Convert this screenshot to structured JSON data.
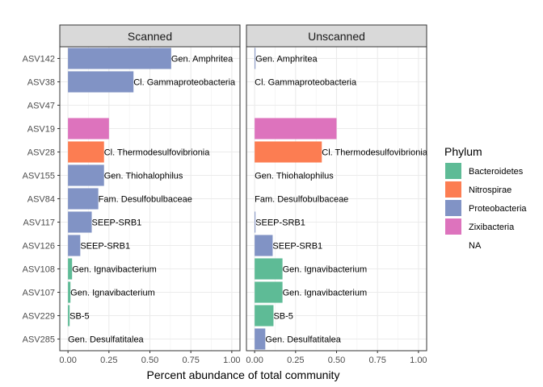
{
  "chart_data": {
    "type": "bar",
    "orientation": "horizontal",
    "xlabel": "Percent abundance of total community",
    "ylabel": "",
    "xlim": [
      -0.05,
      1.05
    ],
    "xticks": [
      "0.00",
      "0.25",
      "0.50",
      "0.75",
      "1.00"
    ],
    "xtick_values": [
      0,
      0.25,
      0.5,
      0.75,
      1.0
    ],
    "grid": true,
    "categories": [
      "ASV142",
      "ASV38",
      "ASV47",
      "ASV19",
      "ASV28",
      "ASV155",
      "ASV84",
      "ASV117",
      "ASV126",
      "ASV108",
      "ASV107",
      "ASV229",
      "ASV285"
    ],
    "panels": [
      {
        "name": "Scanned",
        "bars": [
          {
            "asv": "ASV142",
            "value": 0.63,
            "phylum": "Proteobacteria",
            "label": "Gen. Amphritea"
          },
          {
            "asv": "ASV38",
            "value": 0.4,
            "phylum": "Proteobacteria",
            "label": "Cl. Gammaproteobacteria"
          },
          {
            "asv": "ASV47",
            "value": 0,
            "phylum": "NA",
            "label": ""
          },
          {
            "asv": "ASV19",
            "value": 0.25,
            "phylum": "Zixibacteria",
            "label": ""
          },
          {
            "asv": "ASV28",
            "value": 0.22,
            "phylum": "Nitrospirae",
            "label": "Cl. Thermodesulfovibrionia"
          },
          {
            "asv": "ASV155",
            "value": 0.22,
            "phylum": "Proteobacteria",
            "label": "Gen. Thiohalophilus"
          },
          {
            "asv": "ASV84",
            "value": 0.185,
            "phylum": "Proteobacteria",
            "label": "Fam. Desulfobulbaceae"
          },
          {
            "asv": "ASV117",
            "value": 0.145,
            "phylum": "Proteobacteria",
            "label": "SEEP-SRB1"
          },
          {
            "asv": "ASV126",
            "value": 0.075,
            "phylum": "Proteobacteria",
            "label": "SEEP-SRB1"
          },
          {
            "asv": "ASV108",
            "value": 0.025,
            "phylum": "Bacteroidetes",
            "label": "Gen. Ignavibacterium"
          },
          {
            "asv": "ASV107",
            "value": 0.015,
            "phylum": "Bacteroidetes",
            "label": "Gen. Ignavibacterium"
          },
          {
            "asv": "ASV229",
            "value": 0.01,
            "phylum": "Bacteroidetes",
            "label": "SB-5"
          },
          {
            "asv": "ASV285",
            "value": 0.0,
            "phylum": "Proteobacteria",
            "label": "Gen. Desulfatitalea"
          }
        ]
      },
      {
        "name": "Unscanned",
        "bars": [
          {
            "asv": "ASV142",
            "value": 0.005,
            "phylum": "Proteobacteria",
            "label": "Gen. Amphritea"
          },
          {
            "asv": "ASV38",
            "value": 0.0,
            "phylum": "Proteobacteria",
            "label": "Cl. Gammaproteobacteria"
          },
          {
            "asv": "ASV47",
            "value": 0,
            "phylum": "NA",
            "label": ""
          },
          {
            "asv": "ASV19",
            "value": 0.5,
            "phylum": "Zixibacteria",
            "label": ""
          },
          {
            "asv": "ASV28",
            "value": 0.41,
            "phylum": "Nitrospirae",
            "label": "Cl. Thermodesulfovibrionia"
          },
          {
            "asv": "ASV155",
            "value": 0.0,
            "phylum": "Proteobacteria",
            "label": "Gen. Thiohalophilus"
          },
          {
            "asv": "ASV84",
            "value": 0.0,
            "phylum": "Proteobacteria",
            "label": "Fam. Desulfobulbaceae"
          },
          {
            "asv": "ASV117",
            "value": 0.005,
            "phylum": "Proteobacteria",
            "label": "SEEP-SRB1"
          },
          {
            "asv": "ASV126",
            "value": 0.11,
            "phylum": "Proteobacteria",
            "label": "SEEP-SRB1"
          },
          {
            "asv": "ASV108",
            "value": 0.17,
            "phylum": "Bacteroidetes",
            "label": "Gen. Ignavibacterium"
          },
          {
            "asv": "ASV107",
            "value": 0.17,
            "phylum": "Bacteroidetes",
            "label": "Gen. Ignavibacterium"
          },
          {
            "asv": "ASV229",
            "value": 0.115,
            "phylum": "Bacteroidetes",
            "label": "SB-5"
          },
          {
            "asv": "ASV285",
            "value": 0.065,
            "phylum": "Proteobacteria",
            "label": "Gen. Desulfatitalea"
          }
        ]
      }
    ],
    "legend": {
      "title": "Phylum",
      "placement": "right",
      "items": [
        {
          "name": "Bacteroidetes",
          "color": "#5ebb96"
        },
        {
          "name": "Nitrospirae",
          "color": "#fc7d52"
        },
        {
          "name": "Proteobacteria",
          "color": "#8193c5"
        },
        {
          "name": "Zixibacteria",
          "color": "#dd73bd"
        },
        {
          "name": "NA",
          "color": null
        }
      ]
    }
  }
}
